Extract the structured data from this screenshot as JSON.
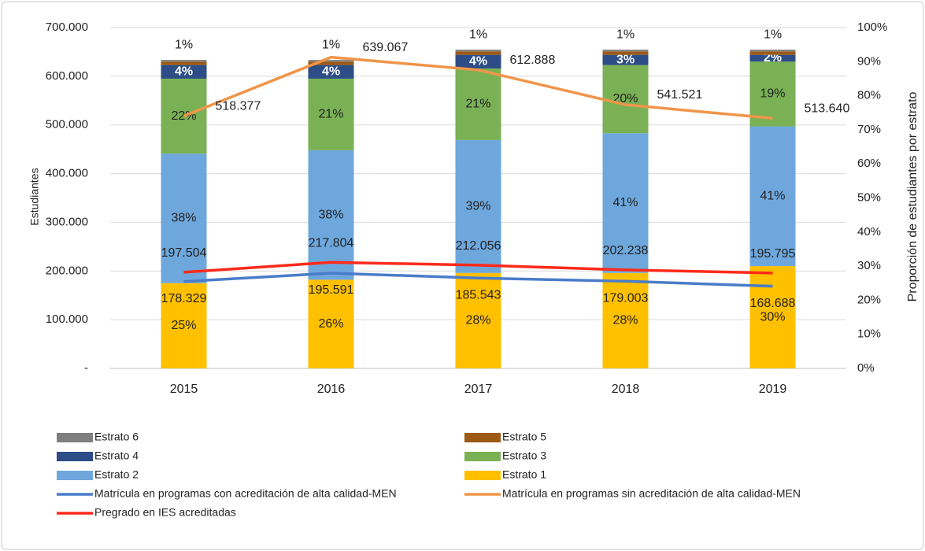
{
  "chart_data": {
    "type": "bar_line_combo",
    "ylabel": "Estudiantes",
    "y2label": "Proporción de estudiantes por estrato",
    "categories": [
      "2015",
      "2016",
      "2017",
      "2018",
      "2019"
    ],
    "ylim": [
      0,
      700000
    ],
    "yticks": [
      {
        "value": 0,
        "label": "-"
      },
      {
        "value": 100000,
        "label": "100.000"
      },
      {
        "value": 200000,
        "label": "200.000"
      },
      {
        "value": 300000,
        "label": "300.000"
      },
      {
        "value": 400000,
        "label": "400.000"
      },
      {
        "value": 500000,
        "label": "500.000"
      },
      {
        "value": 600000,
        "label": "600.000"
      },
      {
        "value": 700000,
        "label": "700.000"
      }
    ],
    "y2lim": [
      0,
      100
    ],
    "y2ticks": [
      {
        "value": 0,
        "label": "0%"
      },
      {
        "value": 10,
        "label": "10%"
      },
      {
        "value": 20,
        "label": "20%"
      },
      {
        "value": 30,
        "label": "30%"
      },
      {
        "value": 40,
        "label": "40%"
      },
      {
        "value": 50,
        "label": "50%"
      },
      {
        "value": 60,
        "label": "60%"
      },
      {
        "value": 70,
        "label": "70%"
      },
      {
        "value": 80,
        "label": "80%"
      },
      {
        "value": 90,
        "label": "90%"
      },
      {
        "value": 100,
        "label": "100%"
      }
    ],
    "grid": true,
    "series": [
      {
        "name": "Estrato 1",
        "type": "bar",
        "axis": "y2",
        "color": "#ffc000",
        "values": [
          25,
          26,
          28,
          28,
          30
        ],
        "value_labels": [
          "25%",
          "26%",
          "28%",
          "28%",
          "30%"
        ]
      },
      {
        "name": "Estrato 2",
        "type": "bar",
        "axis": "y2",
        "color": "#6ea7dc",
        "values": [
          38,
          38,
          39,
          41,
          41
        ],
        "value_labels": [
          "38%",
          "38%",
          "39%",
          "41%",
          "41%"
        ]
      },
      {
        "name": "Estrato 3",
        "type": "bar",
        "axis": "y2",
        "color": "#79b154",
        "values": [
          22,
          21,
          21,
          20,
          19
        ],
        "value_labels": [
          "22%",
          "21%",
          "21%",
          "20%",
          "19%"
        ]
      },
      {
        "name": "Estrato 4",
        "type": "bar",
        "axis": "y2",
        "color": "#2c4d86",
        "values": [
          4,
          4,
          4,
          3,
          2
        ],
        "value_labels": [
          "4%",
          "4%",
          "4%",
          "3%",
          "2%"
        ]
      },
      {
        "name": "Estrato 5",
        "type": "bar",
        "axis": "y2",
        "color": "#9c5a14",
        "values": [
          1,
          1,
          1,
          1,
          1
        ],
        "value_labels": [
          "1%",
          "1%",
          "1%",
          "1%",
          "1%"
        ]
      },
      {
        "name": "Estrato 6",
        "type": "bar",
        "axis": "y2",
        "color": "#7f7f7f",
        "values": [
          0.5,
          0.5,
          0.5,
          0.5,
          0.5
        ]
      },
      {
        "name": "Matrícula en programas con acreditación de alta calidad-MEN",
        "type": "line",
        "color": "#4a7cc9",
        "values": [
          178329,
          195591,
          185543,
          179003,
          168688
        ],
        "value_labels": [
          "178.329",
          "195.591",
          "185.543",
          "179.003",
          "168.688"
        ]
      },
      {
        "name": "Matrícula en programas sin acreditación de alta calidad-MEN",
        "type": "line",
        "color": "#f0954a",
        "values": [
          518377,
          639067,
          612888,
          541521,
          513640
        ],
        "value_labels": [
          "518.377",
          "639.067",
          "612.888",
          "541.521",
          "513.640"
        ]
      },
      {
        "name": "Pregrado en IES acreditadas",
        "type": "line",
        "color": "#ff2a1a",
        "values": [
          197504,
          217804,
          212056,
          202238,
          195795
        ],
        "value_labels": [
          "197.504",
          "217.804",
          "212.056",
          "202.238",
          "195.795"
        ]
      }
    ]
  }
}
